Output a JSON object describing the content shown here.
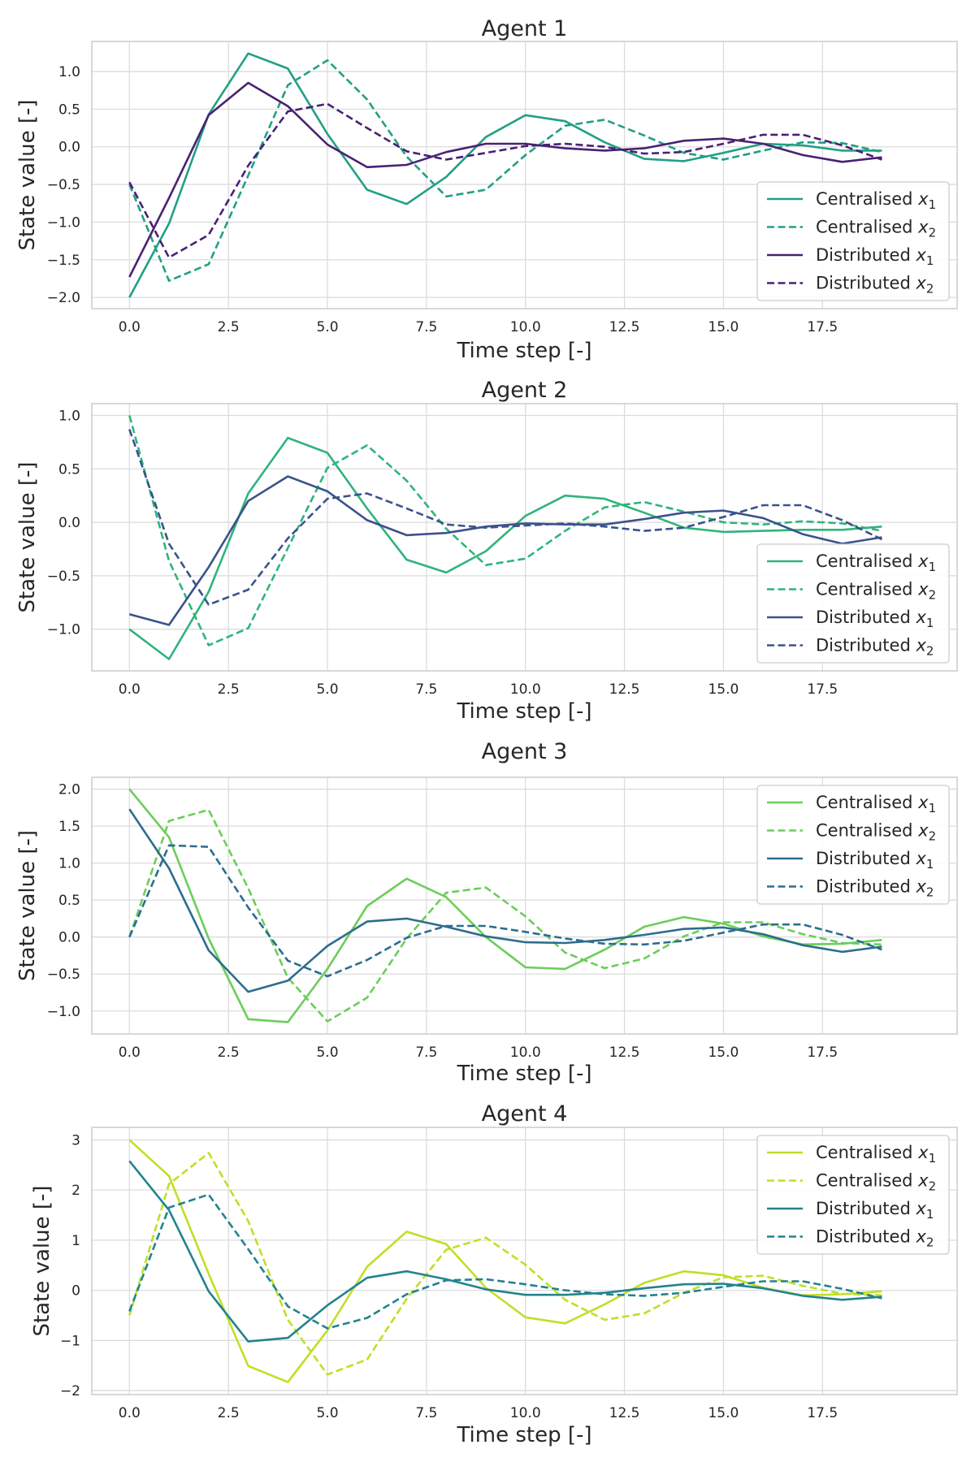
{
  "chart_data": [
    {
      "type": "line",
      "title": "Agent 1",
      "xlabel": "Time step [-]",
      "ylabel": "State value [-]",
      "xlim": [
        -0.95,
        20.9
      ],
      "ylim": [
        -2.15,
        1.4
      ],
      "xticks": [
        0.0,
        2.5,
        5.0,
        7.5,
        10.0,
        12.5,
        15.0,
        17.5
      ],
      "xtick_labels": [
        "0.0",
        "2.5",
        "5.0",
        "7.5",
        "10.0",
        "12.5",
        "15.0",
        "17.5"
      ],
      "yticks": [
        -2.0,
        -1.5,
        -1.0,
        -0.5,
        0.0,
        0.5,
        1.0
      ],
      "ytick_labels": [
        "−2.0",
        "−1.5",
        "−1.0",
        "−0.5",
        "0.0",
        "0.5",
        "1.0"
      ],
      "grid": true,
      "legend_position": "lower-right",
      "x": [
        0,
        1,
        2,
        3,
        4,
        5,
        6,
        7,
        8,
        9,
        10,
        11,
        12,
        13,
        14,
        15,
        16,
        17,
        18,
        19
      ],
      "series": [
        {
          "name": "Centralised x1",
          "label_base": "Centralised ",
          "label_var": "x",
          "label_sub": "1",
          "color": "#21a085",
          "dashed": false,
          "values": [
            -2.0,
            -1.02,
            0.43,
            1.24,
            1.04,
            0.17,
            -0.57,
            -0.76,
            -0.4,
            0.13,
            0.42,
            0.34,
            0.06,
            -0.16,
            -0.19,
            -0.08,
            0.04,
            0.02,
            -0.05,
            -0.05
          ]
        },
        {
          "name": "Centralised x2",
          "label_base": "Centralised ",
          "label_var": "x",
          "label_sub": "2",
          "color": "#21a085",
          "dashed": true,
          "values": [
            -0.5,
            -1.78,
            -1.56,
            -0.38,
            0.82,
            1.15,
            0.63,
            -0.13,
            -0.66,
            -0.57,
            -0.11,
            0.28,
            0.36,
            0.15,
            -0.08,
            -0.17,
            -0.05,
            0.06,
            0.05,
            -0.07
          ]
        },
        {
          "name": "Distributed x1",
          "label_base": "Distributed ",
          "label_var": "x",
          "label_sub": "1",
          "color": "#482173",
          "dashed": false,
          "values": [
            -1.73,
            -0.68,
            0.42,
            0.85,
            0.54,
            0.03,
            -0.27,
            -0.24,
            -0.07,
            0.04,
            0.04,
            -0.02,
            -0.05,
            -0.02,
            0.08,
            0.11,
            0.04,
            -0.11,
            -0.2,
            -0.14
          ]
        },
        {
          "name": "Distributed x2",
          "label_base": "Distributed ",
          "label_var": "x",
          "label_sub": "2",
          "color": "#482173",
          "dashed": true,
          "values": [
            -0.47,
            -1.47,
            -1.17,
            -0.25,
            0.47,
            0.57,
            0.25,
            -0.06,
            -0.17,
            -0.08,
            0.01,
            0.04,
            0.0,
            -0.09,
            -0.07,
            0.04,
            0.16,
            0.16,
            0.02,
            -0.17
          ]
        }
      ]
    },
    {
      "type": "line",
      "title": "Agent 2",
      "xlabel": "Time step [-]",
      "ylabel": "State value [-]",
      "xlim": [
        -0.95,
        20.9
      ],
      "ylim": [
        -1.39,
        1.11
      ],
      "xticks": [
        0.0,
        2.5,
        5.0,
        7.5,
        10.0,
        12.5,
        15.0,
        17.5
      ],
      "xtick_labels": [
        "0.0",
        "2.5",
        "5.0",
        "7.5",
        "10.0",
        "12.5",
        "15.0",
        "17.5"
      ],
      "yticks": [
        -1.0,
        -0.5,
        0.0,
        0.5,
        1.0
      ],
      "ytick_labels": [
        "−1.0",
        "−0.5",
        "0.0",
        "0.5",
        "1.0"
      ],
      "grid": true,
      "legend_position": "lower-right",
      "x": [
        0,
        1,
        2,
        3,
        4,
        5,
        6,
        7,
        8,
        9,
        10,
        11,
        12,
        13,
        14,
        15,
        16,
        17,
        18,
        19
      ],
      "series": [
        {
          "name": "Centralised x1",
          "label_base": "Centralised ",
          "label_var": "x",
          "label_sub": "1",
          "color": "#2fb47c",
          "dashed": false,
          "values": [
            -1.0,
            -1.28,
            -0.65,
            0.27,
            0.79,
            0.65,
            0.13,
            -0.35,
            -0.47,
            -0.27,
            0.06,
            0.25,
            0.22,
            0.09,
            -0.05,
            -0.09,
            -0.08,
            -0.07,
            -0.07,
            -0.04
          ]
        },
        {
          "name": "Centralised x2",
          "label_base": "Centralised ",
          "label_var": "x",
          "label_sub": "2",
          "color": "#2fb47c",
          "dashed": true,
          "values": [
            1.0,
            -0.36,
            -1.15,
            -0.99,
            -0.24,
            0.51,
            0.72,
            0.39,
            -0.06,
            -0.4,
            -0.34,
            -0.08,
            0.14,
            0.19,
            0.1,
            0.0,
            -0.02,
            0.01,
            -0.01,
            -0.08
          ]
        },
        {
          "name": "Distributed x1",
          "label_base": "Distributed ",
          "label_var": "x",
          "label_sub": "1",
          "color": "#3b528b",
          "dashed": false,
          "values": [
            -0.86,
            -0.96,
            -0.42,
            0.2,
            0.43,
            0.29,
            0.02,
            -0.12,
            -0.1,
            -0.04,
            -0.01,
            -0.02,
            -0.02,
            0.03,
            0.09,
            0.11,
            0.04,
            -0.11,
            -0.2,
            -0.14
          ]
        },
        {
          "name": "Distributed x2",
          "label_base": "Distributed ",
          "label_var": "x",
          "label_sub": "2",
          "color": "#3b528b",
          "dashed": true,
          "values": [
            0.87,
            -0.2,
            -0.77,
            -0.63,
            -0.15,
            0.22,
            0.27,
            0.13,
            -0.02,
            -0.05,
            -0.03,
            -0.01,
            -0.04,
            -0.08,
            -0.05,
            0.05,
            0.16,
            0.16,
            0.02,
            -0.16
          ]
        }
      ]
    },
    {
      "type": "line",
      "title": "Agent 3",
      "xlabel": "Time step [-]",
      "ylabel": "State value [-]",
      "xlim": [
        -0.95,
        20.9
      ],
      "ylim": [
        -1.31,
        2.16
      ],
      "xticks": [
        0.0,
        2.5,
        5.0,
        7.5,
        10.0,
        12.5,
        15.0,
        17.5
      ],
      "xtick_labels": [
        "0.0",
        "2.5",
        "5.0",
        "7.5",
        "10.0",
        "12.5",
        "15.0",
        "17.5"
      ],
      "yticks": [
        -1.0,
        -0.5,
        0.0,
        0.5,
        1.0,
        1.5,
        2.0
      ],
      "ytick_labels": [
        "−1.0",
        "−0.5",
        "0.0",
        "0.5",
        "1.0",
        "1.5",
        "2.0"
      ],
      "grid": true,
      "legend_position": "upper-right",
      "x": [
        0,
        1,
        2,
        3,
        4,
        5,
        6,
        7,
        8,
        9,
        10,
        11,
        12,
        13,
        14,
        15,
        16,
        17,
        18,
        19
      ],
      "series": [
        {
          "name": "Centralised x1",
          "label_base": "Centralised ",
          "label_var": "x",
          "label_sub": "1",
          "color": "#6ccd5a",
          "dashed": false,
          "values": [
            2.0,
            1.35,
            -0.02,
            -1.11,
            -1.15,
            -0.43,
            0.42,
            0.79,
            0.54,
            0.0,
            -0.41,
            -0.43,
            -0.17,
            0.14,
            0.27,
            0.18,
            0.01,
            -0.1,
            -0.09,
            -0.04
          ]
        },
        {
          "name": "Centralised x2",
          "label_base": "Centralised ",
          "label_var": "x",
          "label_sub": "2",
          "color": "#6ccd5a",
          "dashed": true,
          "values": [
            0.0,
            1.57,
            1.72,
            0.66,
            -0.55,
            -1.14,
            -0.82,
            -0.02,
            0.6,
            0.67,
            0.28,
            -0.21,
            -0.42,
            -0.29,
            0.01,
            0.2,
            0.2,
            0.04,
            -0.08,
            -0.1
          ]
        },
        {
          "name": "Distributed x1",
          "label_base": "Distributed ",
          "label_var": "x",
          "label_sub": "1",
          "color": "#2c6d8e",
          "dashed": false,
          "values": [
            1.73,
            0.93,
            -0.18,
            -0.74,
            -0.59,
            -0.12,
            0.21,
            0.25,
            0.14,
            0.01,
            -0.07,
            -0.08,
            -0.04,
            0.03,
            0.11,
            0.13,
            0.04,
            -0.11,
            -0.2,
            -0.13
          ]
        },
        {
          "name": "Distributed x2",
          "label_base": "Distributed ",
          "label_var": "x",
          "label_sub": "2",
          "color": "#2c6d8e",
          "dashed": true,
          "values": [
            0.0,
            1.24,
            1.22,
            0.4,
            -0.32,
            -0.53,
            -0.31,
            -0.01,
            0.15,
            0.15,
            0.07,
            -0.02,
            -0.09,
            -0.1,
            -0.05,
            0.06,
            0.17,
            0.17,
            0.03,
            -0.17
          ]
        }
      ]
    },
    {
      "type": "line",
      "title": "Agent 4",
      "xlabel": "Time step [-]",
      "ylabel": "State value [-]",
      "xlim": [
        -0.95,
        20.9
      ],
      "ylim": [
        -2.08,
        3.25
      ],
      "xticks": [
        0.0,
        2.5,
        5.0,
        7.5,
        10.0,
        12.5,
        15.0,
        17.5
      ],
      "xtick_labels": [
        "0.0",
        "2.5",
        "5.0",
        "7.5",
        "10.0",
        "12.5",
        "15.0",
        "17.5"
      ],
      "yticks": [
        -2,
        -1,
        0,
        1,
        2,
        3
      ],
      "ytick_labels": [
        "−2",
        "−1",
        "0",
        "1",
        "2",
        "3"
      ],
      "grid": true,
      "legend_position": "upper-right",
      "x": [
        0,
        1,
        2,
        3,
        4,
        5,
        6,
        7,
        8,
        9,
        10,
        11,
        12,
        13,
        14,
        15,
        16,
        17,
        18,
        19
      ],
      "series": [
        {
          "name": "Centralised x1",
          "label_base": "Centralised ",
          "label_var": "x",
          "label_sub": "1",
          "color": "#c0df25",
          "dashed": false,
          "values": [
            3.0,
            2.28,
            0.33,
            -1.51,
            -1.83,
            -0.8,
            0.47,
            1.17,
            0.92,
            0.05,
            -0.54,
            -0.66,
            -0.28,
            0.15,
            0.38,
            0.3,
            0.05,
            -0.1,
            -0.08,
            -0.02
          ]
        },
        {
          "name": "Centralised x2",
          "label_base": "Centralised ",
          "label_var": "x",
          "label_sub": "2",
          "color": "#c0df25",
          "dashed": true,
          "values": [
            -0.5,
            2.12,
            2.74,
            1.38,
            -0.59,
            -1.68,
            -1.38,
            -0.17,
            0.81,
            1.05,
            0.51,
            -0.19,
            -0.59,
            -0.46,
            -0.05,
            0.26,
            0.29,
            0.09,
            -0.07,
            -0.1
          ]
        },
        {
          "name": "Distributed x1",
          "label_base": "Distributed ",
          "label_var": "x",
          "label_sub": "1",
          "color": "#23838e",
          "dashed": false,
          "values": [
            2.58,
            1.6,
            -0.02,
            -1.02,
            -0.95,
            -0.3,
            0.25,
            0.38,
            0.22,
            0.02,
            -0.09,
            -0.09,
            -0.05,
            0.04,
            0.12,
            0.13,
            0.04,
            -0.11,
            -0.19,
            -0.13
          ]
        },
        {
          "name": "Distributed x2",
          "label_base": "Distributed ",
          "label_var": "x",
          "label_sub": "2",
          "color": "#23838e",
          "dashed": true,
          "values": [
            -0.42,
            1.65,
            1.91,
            0.82,
            -0.32,
            -0.76,
            -0.55,
            -0.08,
            0.2,
            0.22,
            0.12,
            0.0,
            -0.08,
            -0.11,
            -0.05,
            0.07,
            0.18,
            0.18,
            0.03,
            -0.16
          ]
        }
      ]
    }
  ]
}
